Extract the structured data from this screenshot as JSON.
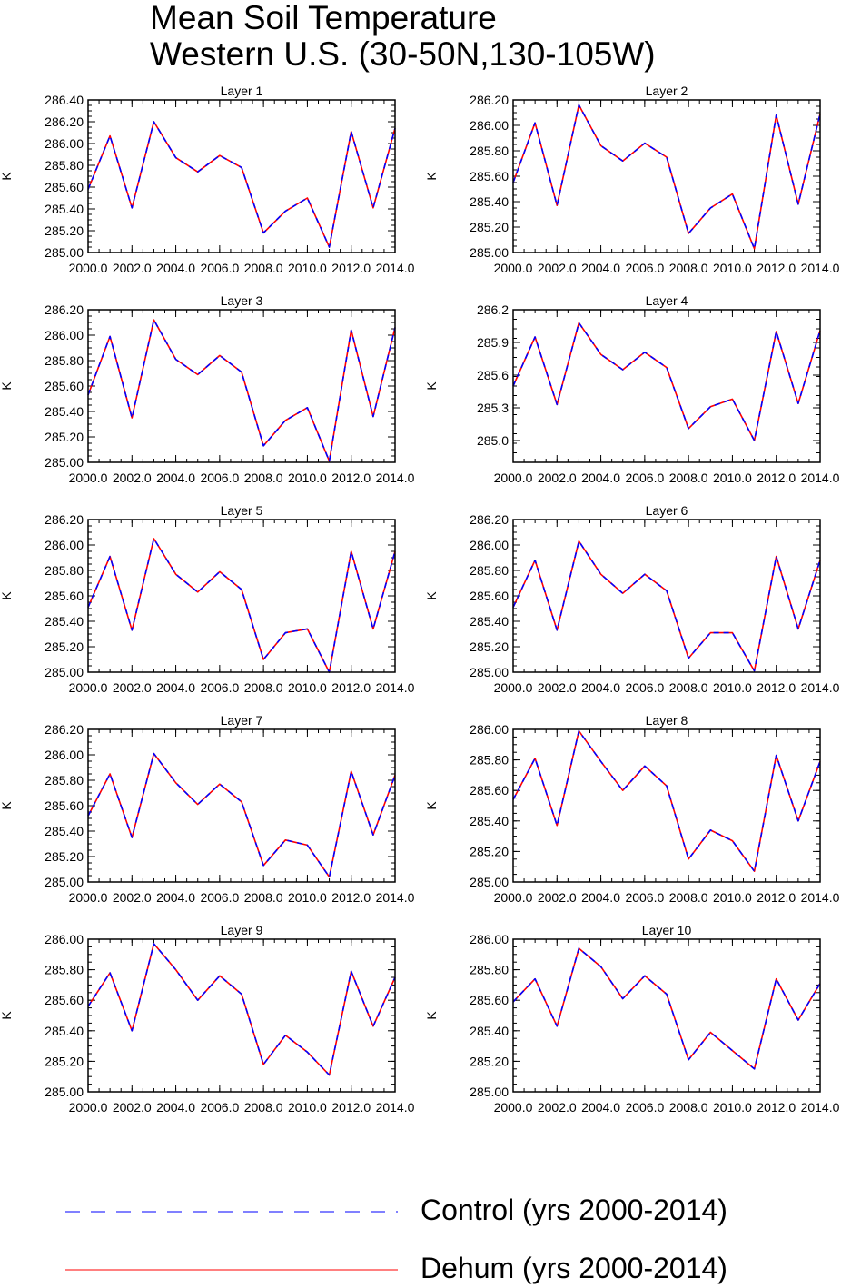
{
  "title": {
    "line1": "Mean Soil Temperature",
    "line2": "Western U.S. (30-50N,130-105W)"
  },
  "colors": {
    "control": "#0000ff",
    "dehum": "#ff0000"
  },
  "legend": {
    "control_label": "Control (yrs 2000-2014)",
    "dehum_label": "Dehum (yrs 2000-2014)"
  },
  "chart_data": [
    {
      "type": "line",
      "title": "Layer 1",
      "ylabel": "K",
      "x": [
        2000,
        2001,
        2002,
        2003,
        2004,
        2005,
        2006,
        2007,
        2008,
        2009,
        2010,
        2011,
        2012,
        2013,
        2014
      ],
      "xticks": [
        "2000.0",
        "2002.0",
        "2004.0",
        "2006.0",
        "2008.0",
        "2010.0",
        "2012.0",
        "2014.0"
      ],
      "ylim": [
        285.0,
        286.4
      ],
      "yticks": [
        "285.00",
        "285.20",
        "285.40",
        "285.60",
        "285.80",
        "286.00",
        "286.20",
        "286.40"
      ],
      "series": [
        {
          "name": "Control (yrs 2000-2014)",
          "values": [
            285.58,
            286.07,
            285.41,
            286.2,
            285.87,
            285.74,
            285.89,
            285.78,
            285.18,
            285.38,
            285.5,
            285.05,
            286.11,
            285.41,
            286.14
          ]
        },
        {
          "name": "Dehum (yrs 2000-2014)",
          "values": [
            285.58,
            286.07,
            285.41,
            286.2,
            285.87,
            285.74,
            285.89,
            285.78,
            285.18,
            285.38,
            285.5,
            285.05,
            286.11,
            285.41,
            286.14
          ]
        }
      ]
    },
    {
      "type": "line",
      "title": "Layer 2",
      "ylabel": "K",
      "x": [
        2000,
        2001,
        2002,
        2003,
        2004,
        2005,
        2006,
        2007,
        2008,
        2009,
        2010,
        2011,
        2012,
        2013,
        2014
      ],
      "xticks": [
        "2000.0",
        "2002.0",
        "2004.0",
        "2006.0",
        "2008.0",
        "2010.0",
        "2012.0",
        "2014.0"
      ],
      "ylim": [
        285.0,
        286.2
      ],
      "yticks": [
        "285.00",
        "285.20",
        "285.40",
        "285.60",
        "285.80",
        "286.00",
        "286.20"
      ],
      "series": [
        {
          "name": "Control (yrs 2000-2014)",
          "values": [
            285.55,
            286.02,
            285.37,
            286.16,
            285.84,
            285.72,
            285.86,
            285.75,
            285.15,
            285.35,
            285.46,
            285.03,
            286.08,
            285.38,
            286.09
          ]
        },
        {
          "name": "Dehum (yrs 2000-2014)",
          "values": [
            285.55,
            286.02,
            285.37,
            286.16,
            285.84,
            285.72,
            285.86,
            285.75,
            285.15,
            285.35,
            285.46,
            285.03,
            286.08,
            285.38,
            286.09
          ]
        }
      ]
    },
    {
      "type": "line",
      "title": "Layer 3",
      "ylabel": "K",
      "x": [
        2000,
        2001,
        2002,
        2003,
        2004,
        2005,
        2006,
        2007,
        2008,
        2009,
        2010,
        2011,
        2012,
        2013,
        2014
      ],
      "xticks": [
        "2000.0",
        "2002.0",
        "2004.0",
        "2006.0",
        "2008.0",
        "2010.0",
        "2012.0",
        "2014.0"
      ],
      "ylim": [
        285.0,
        286.2
      ],
      "yticks": [
        "285.00",
        "285.20",
        "285.40",
        "285.60",
        "285.80",
        "286.00",
        "286.20"
      ],
      "series": [
        {
          "name": "Control (yrs 2000-2014)",
          "values": [
            285.53,
            285.99,
            285.35,
            286.12,
            285.81,
            285.69,
            285.84,
            285.71,
            285.13,
            285.33,
            285.43,
            285.01,
            286.04,
            285.36,
            286.06
          ]
        },
        {
          "name": "Dehum (yrs 2000-2014)",
          "values": [
            285.53,
            285.99,
            285.35,
            286.12,
            285.81,
            285.69,
            285.84,
            285.71,
            285.13,
            285.33,
            285.43,
            285.01,
            286.04,
            285.36,
            286.06
          ]
        }
      ]
    },
    {
      "type": "line",
      "title": "Layer 4",
      "ylabel": "K",
      "x": [
        2000,
        2001,
        2002,
        2003,
        2004,
        2005,
        2006,
        2007,
        2008,
        2009,
        2010,
        2011,
        2012,
        2013,
        2014
      ],
      "xticks": [
        "2000.0",
        "2002.0",
        "2004.0",
        "2006.0",
        "2008.0",
        "2010.0",
        "2012.0",
        "2014.0"
      ],
      "ylim": [
        284.8,
        286.2
      ],
      "yticks": [
        "285.0",
        "285.3",
        "285.6",
        "285.9",
        "286.2"
      ],
      "series": [
        {
          "name": "Control (yrs 2000-2014)",
          "values": [
            285.5,
            285.95,
            285.33,
            286.08,
            285.79,
            285.65,
            285.81,
            285.67,
            285.11,
            285.31,
            285.38,
            285.0,
            286.0,
            285.34,
            286.01
          ]
        },
        {
          "name": "Dehum (yrs 2000-2014)",
          "values": [
            285.5,
            285.95,
            285.33,
            286.08,
            285.79,
            285.65,
            285.81,
            285.67,
            285.11,
            285.31,
            285.38,
            285.0,
            286.0,
            285.34,
            286.01
          ]
        }
      ]
    },
    {
      "type": "line",
      "title": "Layer 5",
      "ylabel": "K",
      "x": [
        2000,
        2001,
        2002,
        2003,
        2004,
        2005,
        2006,
        2007,
        2008,
        2009,
        2010,
        2011,
        2012,
        2013,
        2014
      ],
      "xticks": [
        "2000.0",
        "2002.0",
        "2004.0",
        "2006.0",
        "2008.0",
        "2010.0",
        "2012.0",
        "2014.0"
      ],
      "ylim": [
        285.0,
        286.2
      ],
      "yticks": [
        "285.00",
        "285.20",
        "285.40",
        "285.60",
        "285.80",
        "286.00",
        "286.20"
      ],
      "series": [
        {
          "name": "Control (yrs 2000-2014)",
          "values": [
            285.51,
            285.91,
            285.33,
            286.05,
            285.77,
            285.63,
            285.79,
            285.65,
            285.1,
            285.31,
            285.34,
            285.0,
            285.95,
            285.34,
            285.95
          ]
        },
        {
          "name": "Dehum (yrs 2000-2014)",
          "values": [
            285.51,
            285.91,
            285.33,
            286.05,
            285.77,
            285.63,
            285.79,
            285.65,
            285.1,
            285.31,
            285.34,
            285.0,
            285.95,
            285.34,
            285.95
          ]
        }
      ]
    },
    {
      "type": "line",
      "title": "Layer 6",
      "ylabel": "K",
      "x": [
        2000,
        2001,
        2002,
        2003,
        2004,
        2005,
        2006,
        2007,
        2008,
        2009,
        2010,
        2011,
        2012,
        2013,
        2014
      ],
      "xticks": [
        "2000.0",
        "2002.0",
        "2004.0",
        "2006.0",
        "2008.0",
        "2010.0",
        "2012.0",
        "2014.0"
      ],
      "ylim": [
        285.0,
        286.2
      ],
      "yticks": [
        "285.00",
        "285.20",
        "285.40",
        "285.60",
        "285.80",
        "286.00",
        "286.20"
      ],
      "series": [
        {
          "name": "Control (yrs 2000-2014)",
          "values": [
            285.51,
            285.88,
            285.33,
            286.03,
            285.77,
            285.62,
            285.77,
            285.64,
            285.11,
            285.31,
            285.31,
            285.01,
            285.91,
            285.34,
            285.88
          ]
        },
        {
          "name": "Dehum (yrs 2000-2014)",
          "values": [
            285.51,
            285.88,
            285.33,
            286.03,
            285.77,
            285.62,
            285.77,
            285.64,
            285.11,
            285.31,
            285.31,
            285.01,
            285.91,
            285.34,
            285.88
          ]
        }
      ]
    },
    {
      "type": "line",
      "title": "Layer 7",
      "ylabel": "K",
      "x": [
        2000,
        2001,
        2002,
        2003,
        2004,
        2005,
        2006,
        2007,
        2008,
        2009,
        2010,
        2011,
        2012,
        2013,
        2014
      ],
      "xticks": [
        "2000.0",
        "2002.0",
        "2004.0",
        "2006.0",
        "2008.0",
        "2010.0",
        "2012.0",
        "2014.0"
      ],
      "ylim": [
        285.0,
        286.2
      ],
      "yticks": [
        "285.00",
        "285.20",
        "285.40",
        "285.60",
        "285.80",
        "286.00",
        "286.20"
      ],
      "series": [
        {
          "name": "Control (yrs 2000-2014)",
          "values": [
            285.52,
            285.85,
            285.35,
            286.01,
            285.78,
            285.61,
            285.77,
            285.63,
            285.13,
            285.33,
            285.29,
            285.04,
            285.87,
            285.37,
            285.84
          ]
        },
        {
          "name": "Dehum (yrs 2000-2014)",
          "values": [
            285.52,
            285.85,
            285.35,
            286.01,
            285.78,
            285.61,
            285.77,
            285.63,
            285.13,
            285.33,
            285.29,
            285.04,
            285.87,
            285.37,
            285.84
          ]
        }
      ]
    },
    {
      "type": "line",
      "title": "Layer 8",
      "ylabel": "K",
      "x": [
        2000,
        2001,
        2002,
        2003,
        2004,
        2005,
        2006,
        2007,
        2008,
        2009,
        2010,
        2011,
        2012,
        2013,
        2014
      ],
      "xticks": [
        "2000.0",
        "2002.0",
        "2004.0",
        "2006.0",
        "2008.0",
        "2010.0",
        "2012.0",
        "2014.0"
      ],
      "ylim": [
        285.0,
        286.0
      ],
      "yticks": [
        "285.00",
        "285.20",
        "285.40",
        "285.60",
        "285.80",
        "286.00"
      ],
      "series": [
        {
          "name": "Control (yrs 2000-2014)",
          "values": [
            285.54,
            285.81,
            285.37,
            285.99,
            285.79,
            285.6,
            285.76,
            285.63,
            285.15,
            285.34,
            285.27,
            285.07,
            285.83,
            285.4,
            285.79
          ]
        },
        {
          "name": "Dehum (yrs 2000-2014)",
          "values": [
            285.54,
            285.81,
            285.37,
            285.99,
            285.79,
            285.6,
            285.76,
            285.63,
            285.15,
            285.34,
            285.27,
            285.07,
            285.83,
            285.4,
            285.79
          ]
        }
      ]
    },
    {
      "type": "line",
      "title": "Layer 9",
      "ylabel": "K",
      "x": [
        2000,
        2001,
        2002,
        2003,
        2004,
        2005,
        2006,
        2007,
        2008,
        2009,
        2010,
        2011,
        2012,
        2013,
        2014
      ],
      "xticks": [
        "2000.0",
        "2002.0",
        "2004.0",
        "2006.0",
        "2008.0",
        "2010.0",
        "2012.0",
        "2014.0"
      ],
      "ylim": [
        285.0,
        286.0
      ],
      "yticks": [
        "285.00",
        "285.20",
        "285.40",
        "285.60",
        "285.80",
        "286.00"
      ],
      "series": [
        {
          "name": "Control (yrs 2000-2014)",
          "values": [
            285.56,
            285.78,
            285.4,
            285.97,
            285.8,
            285.6,
            285.76,
            285.64,
            285.18,
            285.37,
            285.26,
            285.11,
            285.79,
            285.43,
            285.75
          ]
        },
        {
          "name": "Dehum (yrs 2000-2014)",
          "values": [
            285.56,
            285.78,
            285.4,
            285.97,
            285.8,
            285.6,
            285.76,
            285.64,
            285.18,
            285.37,
            285.26,
            285.11,
            285.79,
            285.43,
            285.75
          ]
        }
      ]
    },
    {
      "type": "line",
      "title": "Layer 10",
      "ylabel": "K",
      "x": [
        2000,
        2001,
        2002,
        2003,
        2004,
        2005,
        2006,
        2007,
        2008,
        2009,
        2010,
        2011,
        2012,
        2013,
        2014
      ],
      "xticks": [
        "2000.0",
        "2002.0",
        "2004.0",
        "2006.0",
        "2008.0",
        "2010.0",
        "2012.0",
        "2014.0"
      ],
      "ylim": [
        285.0,
        286.0
      ],
      "yticks": [
        "285.00",
        "285.20",
        "285.40",
        "285.60",
        "285.80",
        "286.00"
      ],
      "series": [
        {
          "name": "Control (yrs 2000-2014)",
          "values": [
            285.59,
            285.74,
            285.43,
            285.94,
            285.82,
            285.61,
            285.76,
            285.64,
            285.21,
            285.39,
            285.27,
            285.15,
            285.74,
            285.47,
            285.71
          ]
        },
        {
          "name": "Dehum (yrs 2000-2014)",
          "values": [
            285.59,
            285.74,
            285.43,
            285.94,
            285.82,
            285.61,
            285.76,
            285.64,
            285.21,
            285.39,
            285.27,
            285.15,
            285.74,
            285.47,
            285.71
          ]
        }
      ]
    }
  ]
}
